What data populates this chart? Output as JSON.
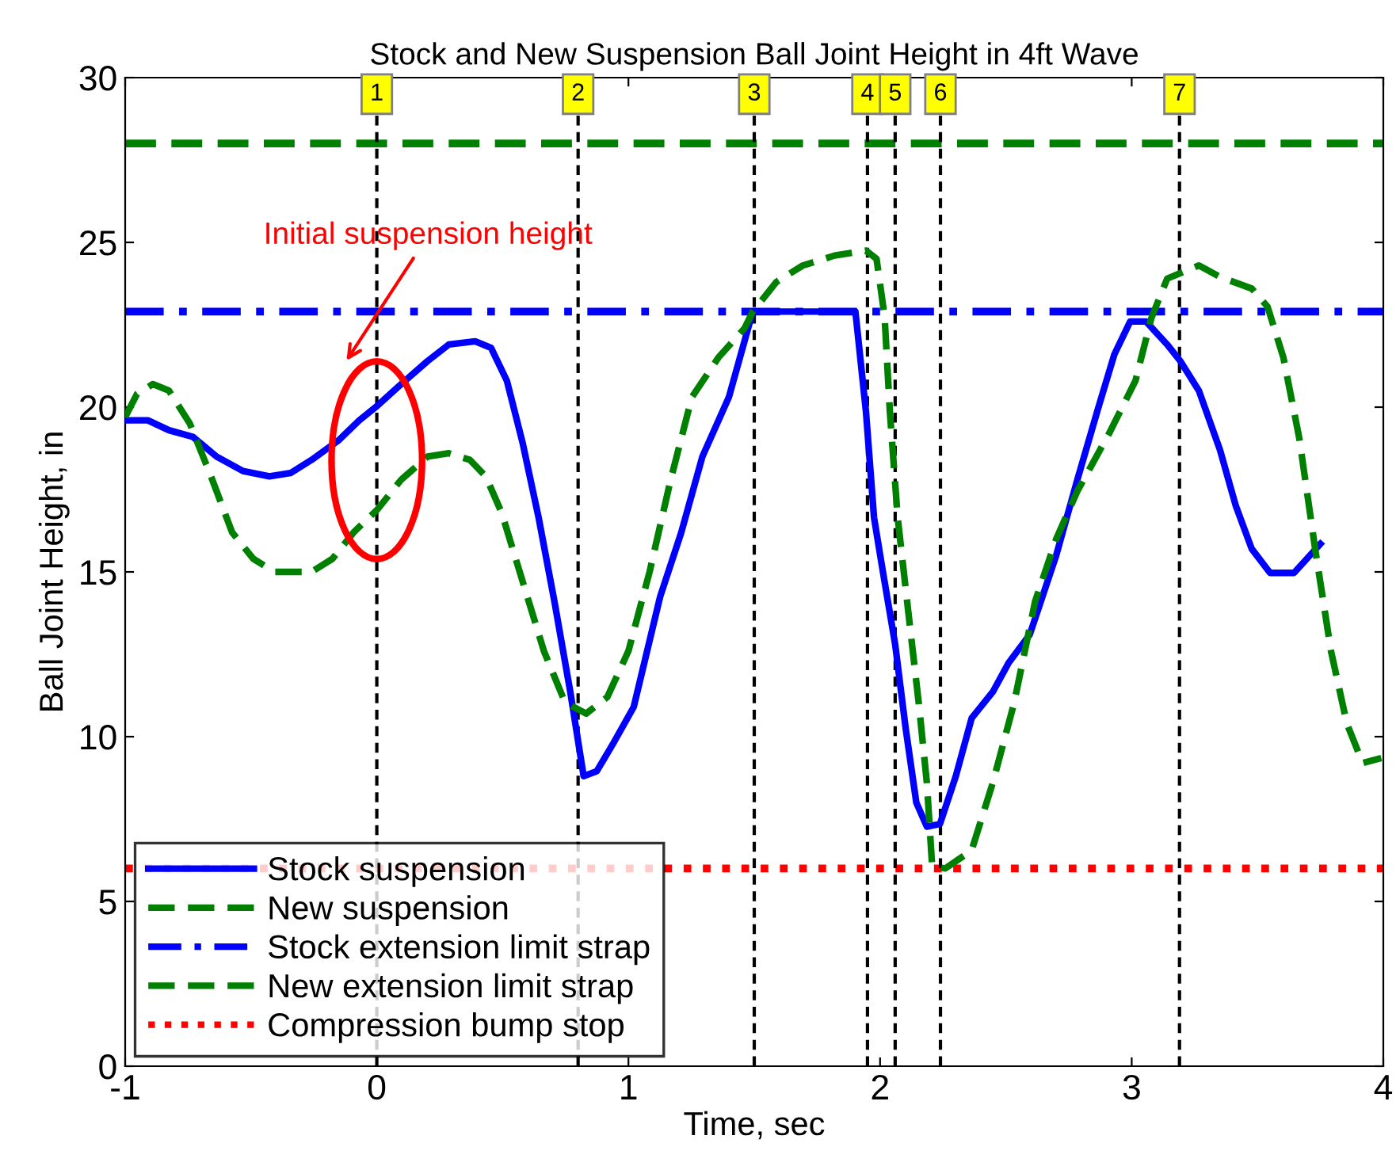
{
  "chart_data": {
    "type": "line",
    "title": "Stock and New Suspension Ball Joint Height in 4ft Wave",
    "xlabel": "Time, sec",
    "ylabel": "Ball Joint Height, in",
    "xlim": [
      -1,
      4
    ],
    "xticks": [
      -1,
      0,
      1,
      2,
      3,
      4
    ],
    "ylim": [
      0,
      30
    ],
    "yticks": [
      0,
      5,
      10,
      15,
      20,
      25,
      30
    ],
    "grid": false,
    "legend": "bottom left",
    "marker": "none",
    "annotations": [
      "Initial suspension height",
      {
        "text": "1",
        "x": 0,
        "y": 29.5
      },
      {
        "text": "2",
        "x": 0.8,
        "y": 29.5
      },
      {
        "text": "3",
        "x": 1.5,
        "y": 29.5
      },
      {
        "text": "4",
        "x": 1.95,
        "y": 29.5
      },
      {
        "text": "5",
        "x": 2.06,
        "y": 29.5
      },
      {
        "text": "6",
        "x": 2.24,
        "y": 29.5
      },
      {
        "text": "7",
        "x": 3.19,
        "y": 29.5
      }
    ],
    "series": [
      {
        "name": "Stock suspension",
        "color": "#0000ff",
        "line_style": "solid",
        "x": [
          -1.0,
          -0.91,
          -0.826,
          -0.731,
          -0.637,
          -0.532,
          -0.427,
          -0.343,
          -0.259,
          -0.154,
          -0.07,
          0.003,
          0.097,
          0.202,
          0.286,
          0.391,
          0.454,
          0.517,
          0.58,
          0.643,
          0.706,
          0.769,
          0.822,
          0.874,
          0.937,
          1.021,
          1.126,
          1.21,
          1.294,
          1.399,
          1.494,
          1.902,
          1.944,
          1.976,
          2.007,
          2.06,
          2.102,
          2.144,
          2.186,
          2.238,
          2.301,
          2.364,
          2.448,
          2.511,
          2.595,
          2.7,
          2.784,
          2.868,
          2.931,
          2.994,
          3.057,
          3.141,
          3.193,
          3.267,
          3.351,
          3.414,
          3.477,
          3.55,
          3.645,
          3.75
        ],
        "values": [
          19.6,
          19.6,
          19.3,
          19.1,
          18.5,
          18.06,
          17.9,
          18.0,
          18.4,
          18.98,
          19.6,
          20.05,
          20.7,
          21.4,
          21.9,
          22.0,
          21.8,
          20.8,
          18.9,
          16.65,
          14.1,
          11.36,
          8.8,
          8.95,
          9.76,
          10.9,
          14.25,
          16.2,
          18.5,
          20.3,
          22.9,
          22.9,
          19.86,
          16.65,
          15.2,
          12.8,
          10.24,
          8.0,
          7.27,
          7.35,
          8.8,
          10.56,
          11.36,
          12.24,
          13.1,
          15.5,
          17.8,
          20.0,
          21.6,
          22.6,
          22.6,
          21.9,
          21.4,
          20.5,
          18.7,
          17.0,
          15.7,
          14.97,
          14.97,
          15.85
        ]
      },
      {
        "name": "New suspension",
        "color": "#008000",
        "line_style": "dashed",
        "x": [
          -1.0,
          -0.953,
          -0.89,
          -0.826,
          -0.743,
          -0.659,
          -0.575,
          -0.491,
          -0.407,
          -0.26,
          -0.176,
          -0.092,
          0.003,
          0.097,
          0.202,
          0.286,
          0.37,
          0.433,
          0.496,
          0.58,
          0.664,
          0.748,
          0.832,
          0.916,
          1.0,
          1.084,
          1.168,
          1.252,
          1.357,
          1.462,
          1.494,
          1.588,
          1.693,
          1.819,
          1.944,
          1.986,
          2.018,
          2.039,
          2.07,
          2.112,
          2.154,
          2.186,
          2.207,
          2.259,
          2.364,
          2.448,
          2.532,
          2.616,
          2.7,
          2.784,
          2.91,
          3.015,
          3.078,
          3.141,
          3.267,
          3.351,
          3.477,
          3.54,
          3.603,
          3.666,
          3.729,
          3.792,
          3.855,
          3.918,
          3.992
        ],
        "values": [
          19.7,
          20.4,
          20.7,
          20.5,
          19.5,
          17.9,
          16.2,
          15.4,
          15.0,
          15.0,
          15.4,
          16.2,
          16.9,
          17.8,
          18.5,
          18.6,
          18.4,
          17.9,
          16.8,
          14.7,
          12.6,
          11.04,
          10.7,
          11.2,
          12.6,
          15.0,
          17.8,
          20.3,
          21.5,
          22.4,
          22.9,
          23.8,
          24.3,
          24.6,
          24.75,
          24.5,
          22.75,
          19.86,
          16.65,
          13.8,
          11.0,
          8.6,
          6.07,
          6.0,
          6.55,
          8.6,
          11.0,
          14.1,
          16.0,
          17.45,
          19.2,
          20.8,
          22.7,
          23.9,
          24.3,
          23.95,
          23.6,
          23.05,
          21.5,
          19.06,
          15.7,
          12.6,
          10.4,
          9.2,
          9.35
        ]
      }
    ],
    "ref_lines": [
      {
        "axis": "y",
        "value": 22.9,
        "label": "Stock extension limit strap",
        "color": "#0000ff",
        "line_style": "dashdot"
      },
      {
        "axis": "y",
        "value": 28,
        "label": "New extension limit strap",
        "color": "#008000",
        "line_style": "dashed"
      },
      {
        "axis": "y",
        "value": 6,
        "label": "Compression bump stop",
        "color": "#ff0000",
        "line_style": "dotted"
      },
      {
        "axis": "x",
        "value": 0,
        "color": "#000000",
        "line_style": "dashed"
      },
      {
        "axis": "x",
        "value": 0.8,
        "color": "#000000",
        "line_style": "dashed"
      },
      {
        "axis": "x",
        "value": 1.5,
        "color": "#000000",
        "line_style": "dashed"
      },
      {
        "axis": "x",
        "value": 1.95,
        "color": "#000000",
        "line_style": "dashed"
      },
      {
        "axis": "x",
        "value": 2.06,
        "color": "#000000",
        "line_style": "dashed"
      },
      {
        "axis": "x",
        "value": 2.24,
        "color": "#000000",
        "line_style": "dashed"
      },
      {
        "axis": "x",
        "value": 3.19,
        "color": "#000000",
        "line_style": "dashed"
      }
    ]
  }
}
